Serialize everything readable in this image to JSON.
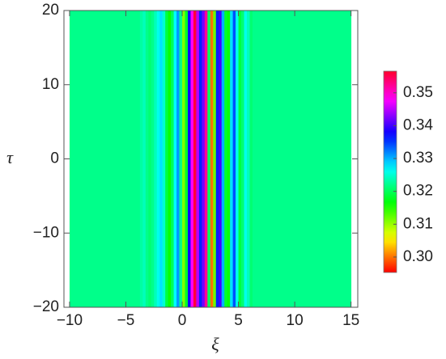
{
  "chart_data": {
    "type": "heatmap",
    "colormap": "hue",
    "x_label": "ξ",
    "y_label": "τ",
    "x_edges": [
      -10,
      -4,
      -3.75,
      -3.5,
      -3.25,
      -3,
      -2.75,
      -2.5,
      -2.25,
      -2,
      -1.75,
      -1.5,
      -1.25,
      -1,
      -0.75,
      -0.5,
      -0.25,
      0,
      0.25,
      0.5,
      0.75,
      1,
      1.25,
      1.5,
      1.75,
      2,
      2.25,
      2.5,
      2.75,
      3,
      3.25,
      3.5,
      3.75,
      4,
      4.25,
      4.5,
      4.75,
      5,
      5.25,
      5.5,
      5.75,
      6,
      6.25,
      6.5,
      15
    ],
    "values": [
      0.322,
      0.322,
      0.323,
      0.324,
      0.322,
      0.321,
      0.322,
      0.324,
      0.326,
      0.328,
      0.325,
      0.319,
      0.316,
      0.32,
      0.327,
      0.331,
      0.322,
      0.311,
      0.318,
      0.338,
      0.348,
      0.356,
      0.345,
      0.336,
      0.342,
      0.352,
      0.32,
      0.3,
      0.312,
      0.336,
      0.34,
      0.33,
      0.318,
      0.316,
      0.328,
      0.334,
      0.326,
      0.319,
      0.321,
      0.326,
      0.324,
      0.321,
      0.322,
      0.322
    ],
    "y_range": [
      -20,
      20
    ],
    "xlim": [
      -10.5,
      15.6
    ],
    "ylim": [
      -20,
      20
    ],
    "xticks": [
      {
        "value": -10,
        "label": "−10"
      },
      {
        "value": -5,
        "label": "−5"
      },
      0,
      5,
      10,
      15
    ],
    "yticks": [
      {
        "value": -20,
        "label": "−20"
      },
      {
        "value": -10,
        "label": "−10"
      },
      0,
      10,
      20
    ],
    "clim": [
      0.2953,
      0.3566
    ],
    "cticks": [
      {
        "value": 0.3,
        "label": "0.30"
      },
      0.31,
      0.32,
      0.33,
      0.34,
      0.35
    ]
  }
}
